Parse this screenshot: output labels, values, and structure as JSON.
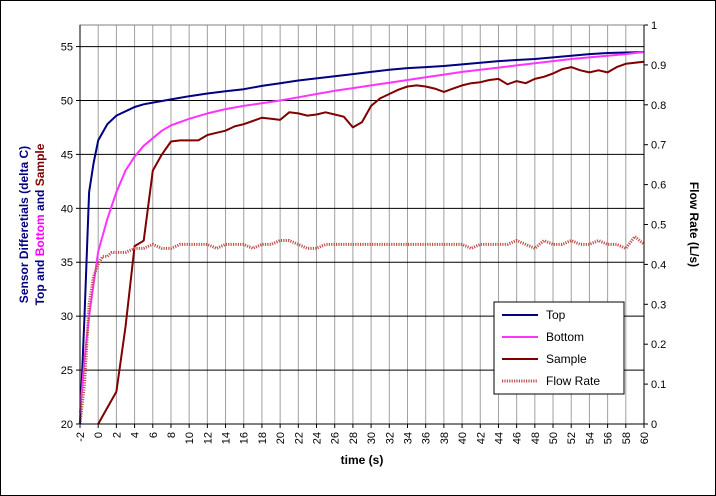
{
  "chart_data": {
    "type": "line",
    "xlabel": "time (s)",
    "ylabel_left": {
      "line1": "Sensor Differetials (delta C)",
      "line2_parts": [
        {
          "text": "Top",
          "color": "#000080"
        },
        {
          "text": " and ",
          "color": "#000080"
        },
        {
          "text": "Bottom",
          "color": "#ff00ff"
        },
        {
          "text": " and ",
          "color": "#000080"
        },
        {
          "text": "Sample",
          "color": "#800000"
        }
      ],
      "color": "#000080"
    },
    "ylabel_right": "Flow Rate (L/s)",
    "xlim": [
      -2,
      60
    ],
    "ylim_left": [
      20,
      57
    ],
    "ylim_right": [
      0,
      1
    ],
    "x_ticks": [
      "-2",
      "0",
      "2",
      "4",
      "6",
      "8",
      "10",
      "12",
      "14",
      "16",
      "18",
      "20",
      "22",
      "24",
      "26",
      "28",
      "30",
      "32",
      "34",
      "36",
      "38",
      "40",
      "42",
      "44",
      "46",
      "48",
      "50",
      "52",
      "54",
      "56",
      "58",
      "60"
    ],
    "y_left_ticks": [
      "20",
      "25",
      "30",
      "35",
      "40",
      "45",
      "50",
      "55"
    ],
    "y_right_ticks": [
      "0",
      "0.1",
      "0.2",
      "0.3",
      "0.4",
      "0.5",
      "0.6",
      "0.7",
      "0.8",
      "0.9",
      "1"
    ],
    "grid": true,
    "legend_position": "bottom-right",
    "series": [
      {
        "name": "Top",
        "color": "#000080",
        "axis": "left",
        "style": "solid",
        "x": [
          -2,
          -1.5,
          -1,
          -0.5,
          0,
          1,
          2,
          3,
          4,
          5,
          6,
          8,
          10,
          12,
          14,
          16,
          18,
          20,
          22,
          24,
          26,
          28,
          30,
          32,
          34,
          36,
          38,
          40,
          42,
          44,
          46,
          48,
          50,
          52,
          54,
          56,
          58,
          60
        ],
        "y": [
          20,
          30,
          41.5,
          44.2,
          46.3,
          47.8,
          48.6,
          49.0,
          49.4,
          49.65,
          49.8,
          50.1,
          50.4,
          50.65,
          50.85,
          51.05,
          51.35,
          51.6,
          51.85,
          52.05,
          52.25,
          52.45,
          52.65,
          52.85,
          53.0,
          53.1,
          53.2,
          53.35,
          53.5,
          53.65,
          53.75,
          53.85,
          54.0,
          54.15,
          54.3,
          54.4,
          54.45,
          54.5
        ]
      },
      {
        "name": "Bottom",
        "color": "#ff33ff",
        "axis": "left",
        "style": "solid",
        "x": [
          -2,
          -1.5,
          -1,
          -0.5,
          0,
          1,
          2,
          3,
          4,
          5,
          6,
          7,
          8,
          10,
          12,
          14,
          16,
          18,
          20,
          22,
          24,
          26,
          28,
          30,
          32,
          34,
          36,
          38,
          40,
          42,
          44,
          46,
          48,
          50,
          52,
          54,
          56,
          58,
          60
        ],
        "y": [
          21,
          26,
          30,
          33,
          36,
          39,
          41.5,
          43.5,
          44.8,
          45.8,
          46.5,
          47.2,
          47.7,
          48.3,
          48.8,
          49.2,
          49.5,
          49.75,
          50.0,
          50.3,
          50.6,
          50.9,
          51.15,
          51.4,
          51.65,
          51.9,
          52.15,
          52.4,
          52.65,
          52.85,
          53.05,
          53.25,
          53.45,
          53.65,
          53.85,
          54.0,
          54.15,
          54.3,
          54.5
        ]
      },
      {
        "name": "Sample",
        "color": "#800000",
        "axis": "left",
        "style": "solid",
        "x": [
          0,
          1,
          2,
          3,
          4,
          5,
          6,
          7,
          8,
          9,
          10,
          11,
          12,
          13,
          14,
          15,
          16,
          17,
          18,
          19,
          20,
          21,
          22,
          23,
          24,
          25,
          26,
          27,
          28,
          29,
          30,
          31,
          32,
          33,
          34,
          35,
          36,
          37,
          38,
          39,
          40,
          41,
          42,
          43,
          44,
          45,
          46,
          47,
          48,
          49,
          50,
          51,
          52,
          53,
          54,
          55,
          56,
          57,
          58,
          59,
          60
        ],
        "y": [
          20,
          21.5,
          23,
          29,
          36.5,
          37,
          43.5,
          45,
          46.2,
          46.3,
          46.3,
          46.3,
          46.8,
          47.0,
          47.2,
          47.6,
          47.8,
          48.1,
          48.4,
          48.3,
          48.2,
          48.9,
          48.8,
          48.6,
          48.7,
          48.9,
          48.7,
          48.5,
          47.5,
          48.0,
          49.5,
          50.2,
          50.6,
          51.0,
          51.3,
          51.4,
          51.3,
          51.1,
          50.8,
          51.1,
          51.4,
          51.6,
          51.7,
          51.9,
          52.0,
          51.5,
          51.8,
          51.6,
          52.0,
          52.2,
          52.5,
          52.9,
          53.1,
          52.8,
          52.6,
          52.8,
          52.6,
          53.1,
          53.4,
          53.5,
          53.6
        ]
      },
      {
        "name": "Flow Rate",
        "color": "#c05050",
        "axis": "right",
        "style": "dotted",
        "x": [
          -2,
          -1.5,
          -1,
          -0.5,
          0,
          0.5,
          1,
          1.5,
          2,
          3,
          4,
          5,
          6,
          7,
          8,
          9,
          10,
          11,
          12,
          13,
          14,
          15,
          16,
          17,
          18,
          19,
          20,
          21,
          22,
          23,
          24,
          25,
          26,
          27,
          28,
          29,
          30,
          31,
          32,
          33,
          34,
          35,
          36,
          37,
          38,
          39,
          40,
          41,
          42,
          43,
          44,
          45,
          46,
          47,
          48,
          49,
          50,
          51,
          52,
          53,
          54,
          55,
          56,
          57,
          58,
          59,
          60
        ],
        "y": [
          0.0,
          0.1,
          0.3,
          0.37,
          0.4,
          0.42,
          0.42,
          0.43,
          0.43,
          0.43,
          0.44,
          0.44,
          0.45,
          0.44,
          0.44,
          0.45,
          0.45,
          0.45,
          0.45,
          0.44,
          0.45,
          0.45,
          0.45,
          0.44,
          0.45,
          0.45,
          0.46,
          0.46,
          0.45,
          0.44,
          0.44,
          0.45,
          0.45,
          0.45,
          0.45,
          0.45,
          0.45,
          0.45,
          0.45,
          0.45,
          0.45,
          0.45,
          0.45,
          0.45,
          0.45,
          0.45,
          0.45,
          0.44,
          0.45,
          0.45,
          0.45,
          0.45,
          0.46,
          0.45,
          0.44,
          0.46,
          0.45,
          0.45,
          0.46,
          0.45,
          0.45,
          0.46,
          0.45,
          0.45,
          0.44,
          0.47,
          0.45
        ]
      }
    ]
  }
}
